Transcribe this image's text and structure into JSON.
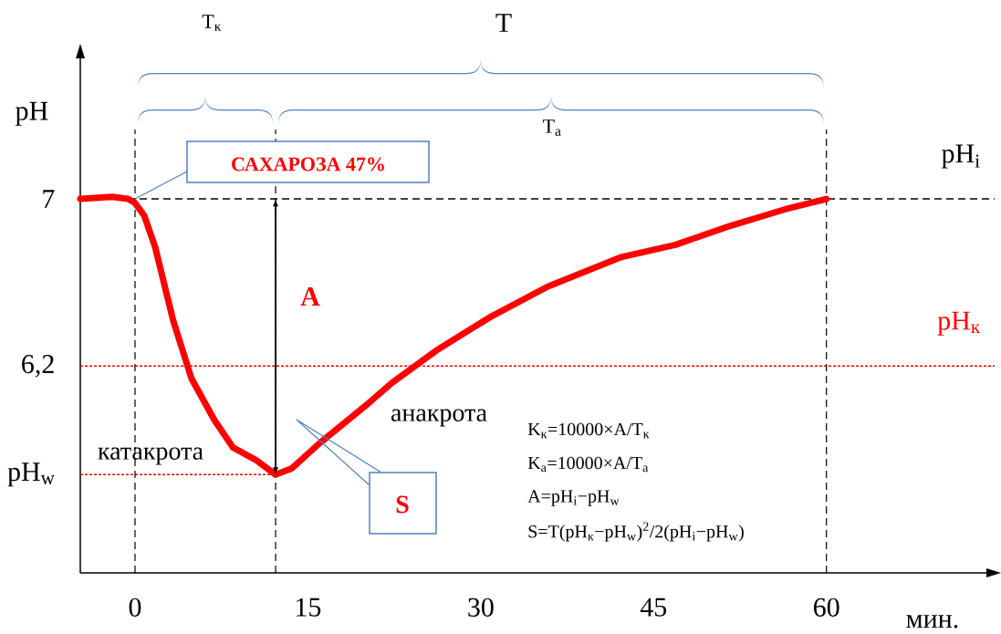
{
  "chart_data": {
    "type": "line",
    "xlabel": "мин.",
    "ylabel": "pH",
    "xlim": [
      -4.75,
      74.6
    ],
    "ylim": [
      5.21,
      7.69
    ],
    "xticks": [
      0,
      15,
      30,
      45,
      60
    ],
    "yticks": [
      {
        "value": 5.68,
        "label": "pH$_{w}$"
      },
      {
        "value": 6.2,
        "label": "6,2"
      },
      7
    ],
    "series": [
      {
        "color": "#ff0000",
        "x": [
          -4.75,
          -2,
          -0.6,
          0,
          0.8,
          1.74,
          3.3,
          4.9,
          6.9,
          8.5,
          10.5,
          12.2,
          13.6,
          16,
          20,
          22.3,
          26.3,
          31,
          35.8,
          42.1,
          46.9,
          51.6,
          56.4,
          60
        ],
        "values": [
          7,
          7.01,
          7,
          6.98,
          6.92,
          6.77,
          6.42,
          6.14,
          5.94,
          5.81,
          5.75,
          5.68,
          5.71,
          5.83,
          6.01,
          6.12,
          6.28,
          6.44,
          6.58,
          6.72,
          6.78,
          6.87,
          6.95,
          7
        ]
      }
    ],
    "ref_lines": [
      {
        "axis": "y",
        "value": 7,
        "label": "pH$_{i}$",
        "color": "#000000",
        "line_style": "dashed"
      },
      {
        "axis": "y",
        "value": 6.2,
        "label": "pH$_{к}$",
        "color": "#ff0000",
        "line_style": "dotted"
      },
      {
        "axis": "y",
        "value": 5.68,
        "color": "#ff0000",
        "line_style": "dotted"
      },
      {
        "axis": "x",
        "value": 0,
        "color": "#000000",
        "line_style": "dashed"
      },
      {
        "axis": "x",
        "value": 12.2,
        "color": "#000000",
        "line_style": "dashed"
      },
      {
        "axis": "x",
        "value": 60,
        "color": "#000000",
        "line_style": "dashed"
      }
    ],
    "annotations": [
      "САХАРОЗА 47%",
      "A",
      "S",
      "катакрота",
      "анакрота",
      "K$_{к}$=10000×A/T$_{к}$",
      "K$_{а}$=10000×A/T$_{а}$",
      "A=pH$_{i}$−pH$_{w}$",
      "S=T(pH$_{к}$−pH$_{w}$)$^{2}$/2(pH$_{i}$−pH$_{w}$)",
      "T$_{к}$",
      "T$_{а}$",
      "T"
    ]
  }
}
